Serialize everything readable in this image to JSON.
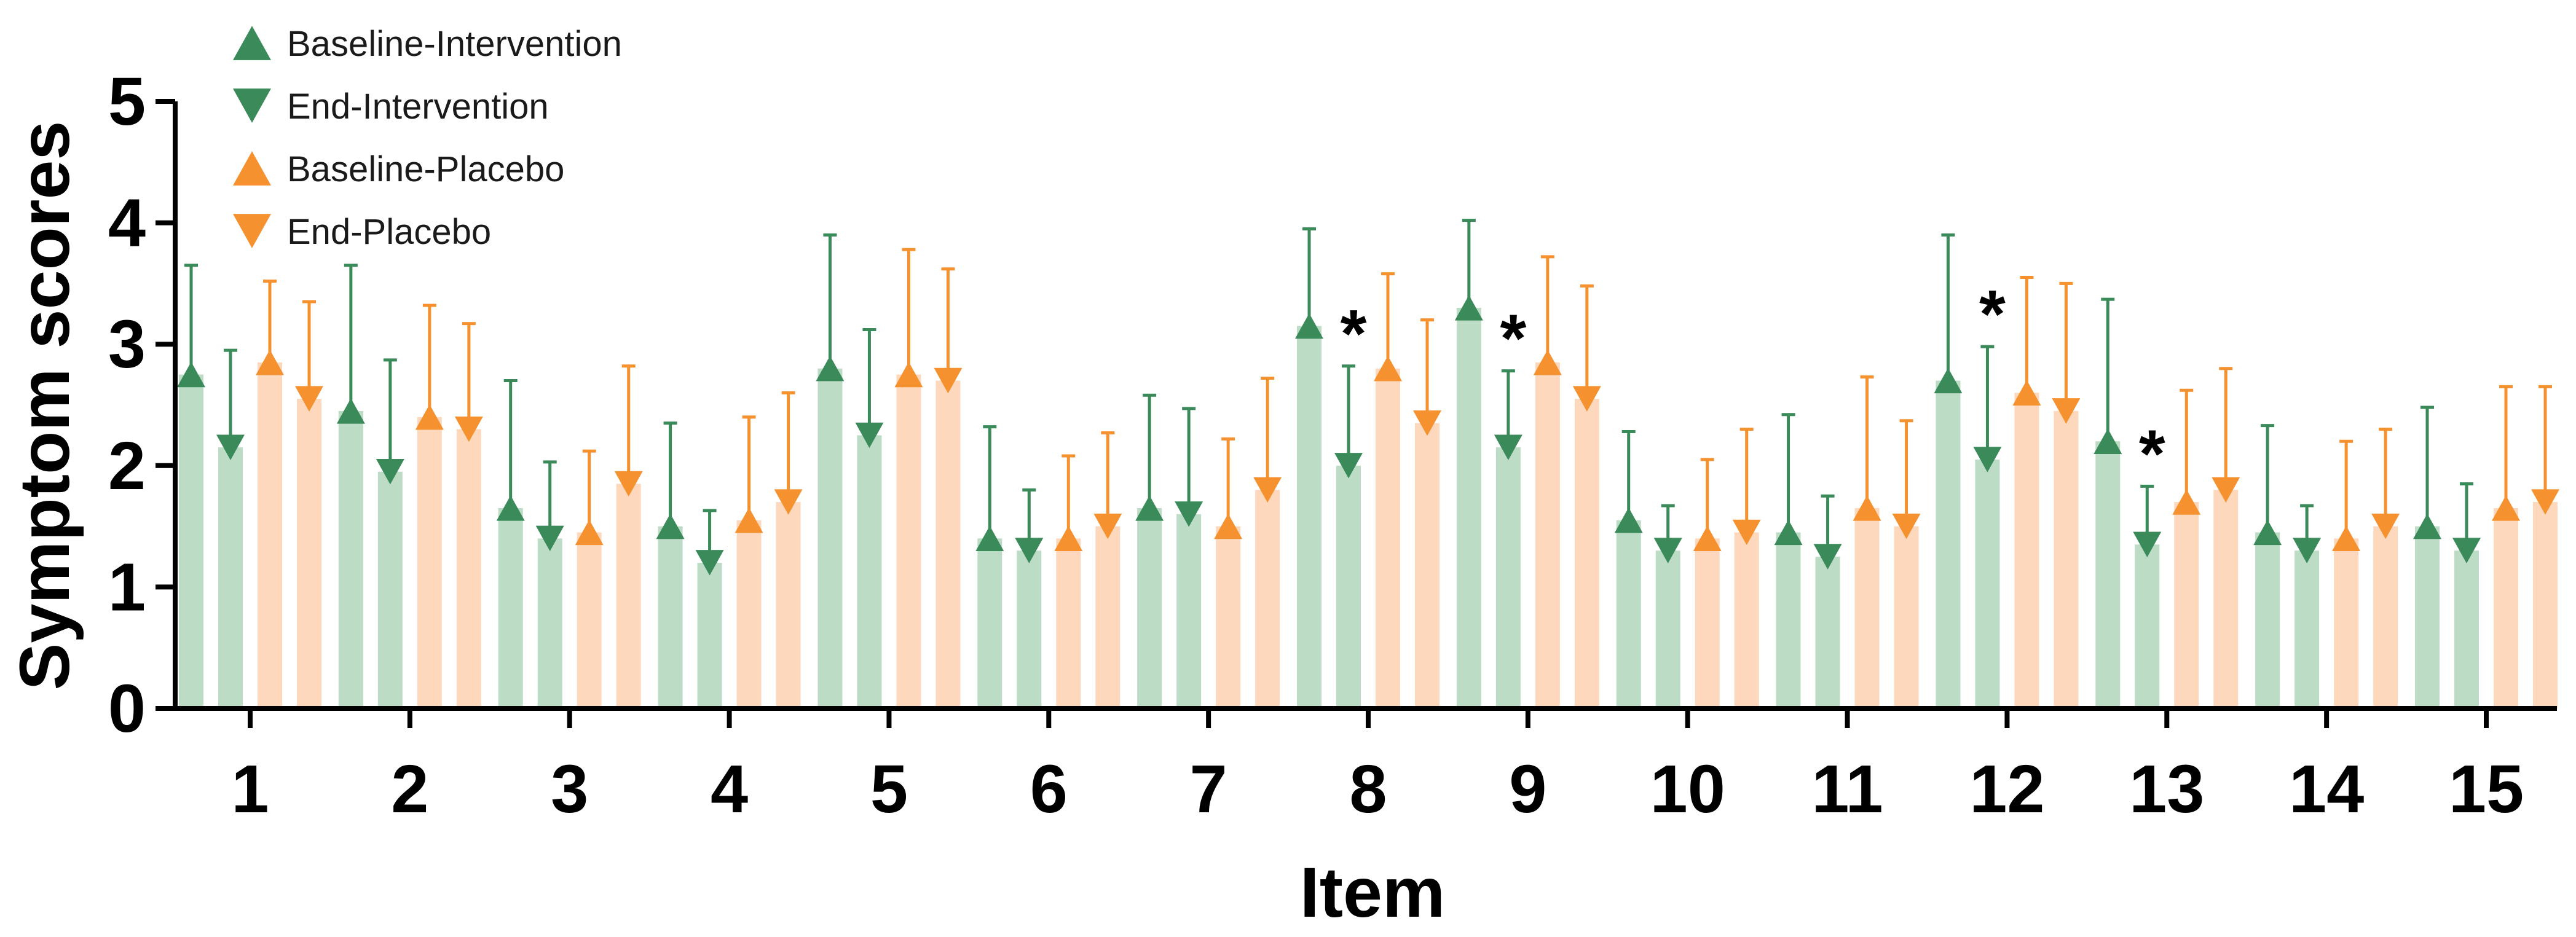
{
  "chart_data": {
    "type": "bar",
    "xlabel": "Item",
    "ylabel": "Symptom scores",
    "ylim": [
      0,
      5
    ],
    "yticks": [
      "0",
      "1",
      "2",
      "3",
      "4",
      "5"
    ],
    "grid": false,
    "legend_position": "top-left",
    "categories": [
      "1",
      "2",
      "3",
      "4",
      "5",
      "6",
      "7",
      "8",
      "9",
      "10",
      "11",
      "12",
      "13",
      "14",
      "15"
    ],
    "series": [
      {
        "name": "Baseline-Intervention",
        "marker": "triangle-up",
        "color": "#3a8a5a",
        "bar_color": "#bcdcc6",
        "values": [
          2.75,
          2.45,
          1.65,
          1.5,
          2.8,
          1.4,
          1.65,
          3.15,
          3.3,
          1.55,
          1.45,
          2.7,
          2.2,
          1.45,
          1.5
        ],
        "error": [
          0.9,
          1.2,
          1.05,
          0.85,
          1.1,
          0.92,
          0.93,
          0.8,
          0.72,
          0.73,
          0.97,
          1.2,
          1.17,
          0.88,
          0.98
        ]
      },
      {
        "name": "End-Intervention",
        "marker": "triangle-down",
        "color": "#3a8a5a",
        "bar_color": "#bcdcc6",
        "values": [
          2.15,
          1.95,
          1.4,
          1.2,
          2.25,
          1.3,
          1.6,
          2.0,
          2.15,
          1.3,
          1.25,
          2.05,
          1.35,
          1.3,
          1.3
        ],
        "error": [
          0.8,
          0.92,
          0.63,
          0.43,
          0.87,
          0.5,
          0.87,
          0.82,
          0.63,
          0.37,
          0.5,
          0.93,
          0.48,
          0.37,
          0.55
        ]
      },
      {
        "name": "Baseline-Placebo",
        "marker": "triangle-up",
        "color": "#f5922f",
        "bar_color": "#fdd8bd",
        "values": [
          2.85,
          2.4,
          1.45,
          1.55,
          2.75,
          1.4,
          1.5,
          2.8,
          2.85,
          1.4,
          1.65,
          2.6,
          1.7,
          1.4,
          1.65
        ],
        "error": [
          0.67,
          0.92,
          0.67,
          0.85,
          1.03,
          0.68,
          0.72,
          0.78,
          0.87,
          0.65,
          1.08,
          0.95,
          0.92,
          0.8,
          1.0
        ]
      },
      {
        "name": "End-Placebo",
        "marker": "triangle-down",
        "color": "#f5922f",
        "bar_color": "#fdd8bd",
        "values": [
          2.55,
          2.3,
          1.85,
          1.7,
          2.7,
          1.5,
          1.8,
          2.35,
          2.55,
          1.45,
          1.5,
          2.45,
          1.8,
          1.5,
          1.7
        ],
        "error": [
          0.8,
          0.87,
          0.97,
          0.9,
          0.92,
          0.77,
          0.92,
          0.85,
          0.93,
          0.85,
          0.87,
          1.05,
          1.0,
          0.8,
          0.95
        ]
      }
    ],
    "annotations": [
      {
        "text": "*",
        "category": "8",
        "series": "End-Intervention"
      },
      {
        "text": "*",
        "category": "9",
        "series": "End-Intervention"
      },
      {
        "text": "*",
        "category": "12",
        "series": "End-Intervention"
      },
      {
        "text": "*",
        "category": "13",
        "series": "End-Intervention"
      }
    ]
  }
}
